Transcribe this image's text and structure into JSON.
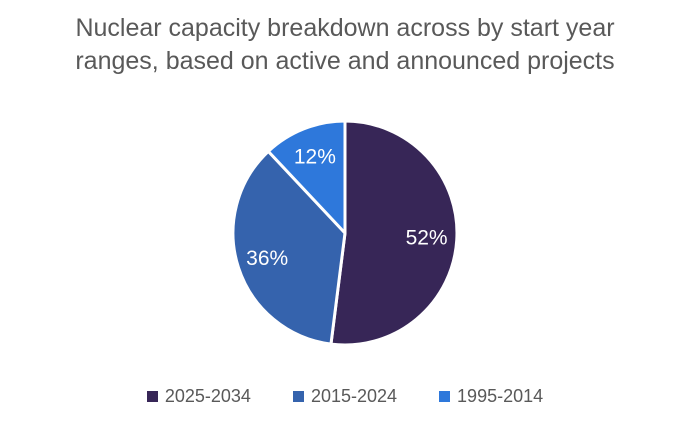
{
  "chart_data": {
    "type": "pie",
    "title": "Nuclear capacity breakdown across by start year ranges, based on active and announced projects",
    "title_lines": [
      "Nuclear capacity breakdown across by start year",
      "ranges, based on active and announced projects"
    ],
    "categories": [
      "2025-2034",
      "2015-2024",
      "1995-2014"
    ],
    "values": [
      52,
      36,
      12
    ],
    "data_labels": [
      "52%",
      "36%",
      "12%"
    ],
    "colors": [
      "#372657",
      "#3563AD",
      "#2E78DB"
    ],
    "slice_border_color": "#FFFFFF",
    "data_label_color": "#FFFFFF",
    "title_color": "#595959",
    "legend_text_color": "#595959",
    "legend_position": "bottom",
    "start_angle_deg": 0,
    "direction": "clockwise"
  }
}
